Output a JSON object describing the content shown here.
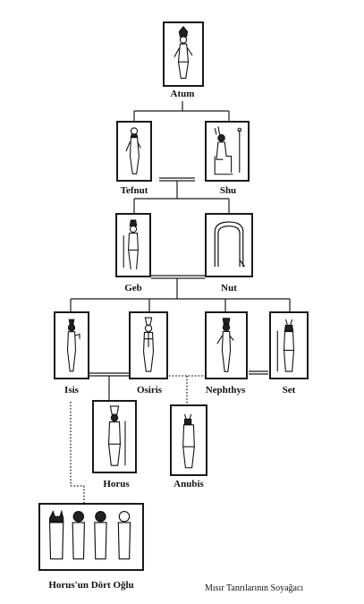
{
  "deities": {
    "atum": "Atum",
    "tefnut": "Tefnut",
    "shu": "Shu",
    "geb": "Geb",
    "nut": "Nut",
    "isis": "Isis",
    "osiris": "Osiris",
    "nephthys": "Nephthys",
    "set": "Set",
    "horus": "Horus",
    "anubis": "Anubis",
    "four_sons": "Horus'un Dört Oğlu"
  },
  "caption": "Mısır Tanrılarının Soyağacı"
}
